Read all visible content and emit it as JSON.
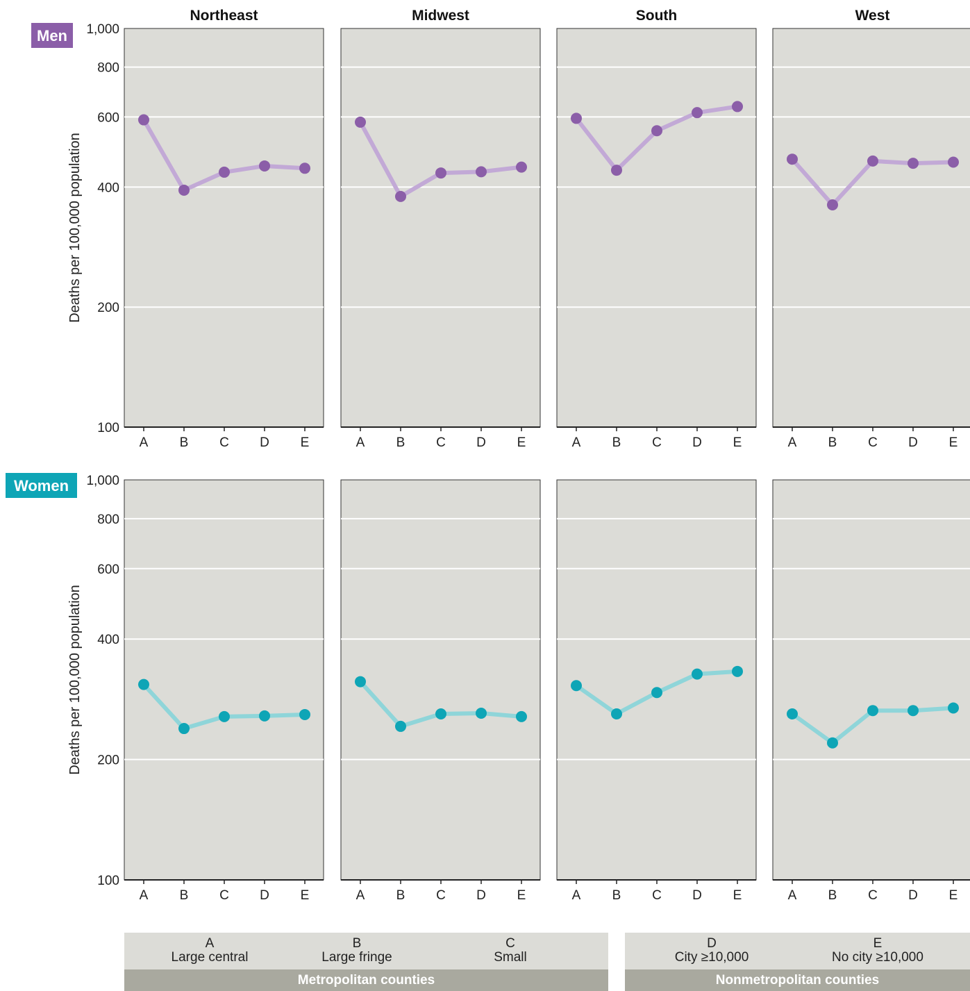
{
  "colors": {
    "men": "#8b5ea8",
    "men_line": "#c2a9d6",
    "women": "#0ea5b6",
    "women_line": "#8fd5d9",
    "panel_bg": "#dcdcd7",
    "group_bar": "#a9a99f"
  },
  "chart_data": [
    {
      "type": "line",
      "row_label": "Men",
      "ylabel": "Deaths per 100,000 population",
      "y_scale": "log",
      "ylim": [
        100,
        1000
      ],
      "yticks": [
        "1,000",
        "800",
        "600",
        "400",
        "200",
        "100"
      ],
      "categories": [
        "A",
        "B",
        "C",
        "D",
        "E"
      ],
      "panels": [
        {
          "title": "Northeast",
          "values": [
            590,
            393,
            436,
            452,
            446
          ]
        },
        {
          "title": "Midwest",
          "values": [
            582,
            379,
            434,
            437,
            449
          ]
        },
        {
          "title": "South",
          "values": [
            595,
            441,
            554,
            615,
            637
          ]
        },
        {
          "title": "West",
          "values": [
            470,
            361,
            465,
            459,
            462
          ]
        }
      ]
    },
    {
      "type": "line",
      "row_label": "Women",
      "ylabel": "Deaths per 100,000 population",
      "y_scale": "log",
      "ylim": [
        100,
        1000
      ],
      "yticks": [
        "1,000",
        "800",
        "600",
        "400",
        "200",
        "100"
      ],
      "categories": [
        "A",
        "B",
        "C",
        "D",
        "E"
      ],
      "panels": [
        {
          "title": "",
          "values": [
            308,
            239,
            256,
            257,
            259
          ]
        },
        {
          "title": "",
          "values": [
            313,
            242,
            260,
            261,
            256
          ]
        },
        {
          "title": "",
          "values": [
            306,
            260,
            294,
            327,
            332
          ]
        },
        {
          "title": "",
          "values": [
            260,
            220,
            265,
            265,
            269
          ]
        }
      ]
    }
  ],
  "key": {
    "items": [
      {
        "letter": "A",
        "label": "Large central"
      },
      {
        "letter": "B",
        "label": "Large fringe"
      },
      {
        "letter": "C",
        "label": "Small"
      },
      {
        "letter": "D",
        "label": "City ≥10,000"
      },
      {
        "letter": "E",
        "label": "No city ≥10,000"
      }
    ],
    "groups": [
      "Metropolitan counties",
      "Nonmetropolitan counties"
    ]
  }
}
